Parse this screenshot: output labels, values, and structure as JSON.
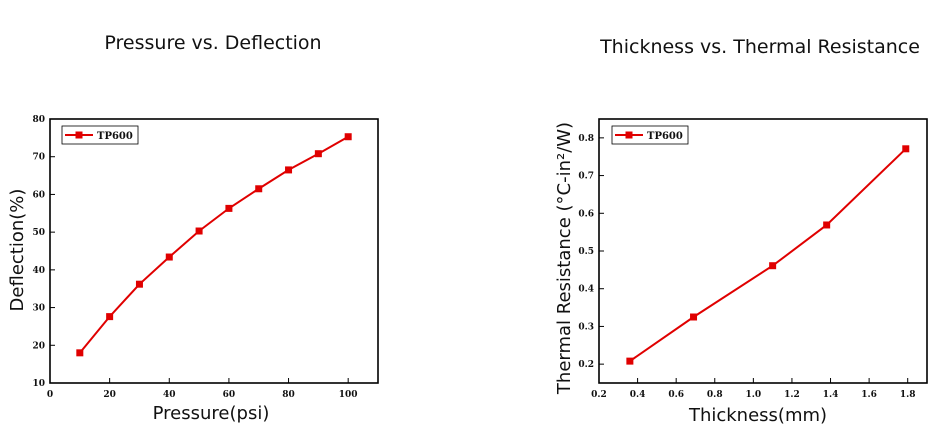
{
  "chart_data": [
    {
      "type": "line",
      "title": "Pressure vs. Deflection",
      "xlabel": "Pressure(psi)",
      "ylabel": "Deflection(%)",
      "xlim": [
        0,
        110
      ],
      "ylim": [
        10,
        80
      ],
      "xticks": [
        "0",
        "20",
        "40",
        "60",
        "80",
        "100"
      ],
      "yticks": [
        "10",
        "20",
        "30",
        "40",
        "50",
        "60",
        "70",
        "80"
      ],
      "legend_position": "top-left",
      "series": [
        {
          "name": "TP600",
          "color": "#e00000",
          "marker": "square",
          "x": [
            10,
            20,
            30,
            40,
            50,
            60,
            70,
            80,
            90,
            100
          ],
          "y": [
            18,
            27.6,
            36.2,
            43.4,
            50.3,
            56.3,
            61.5,
            66.5,
            70.8,
            75.3
          ]
        }
      ]
    },
    {
      "type": "line",
      "title": "Thickness vs. Thermal Resistance",
      "xlabel": "Thickness(mm)",
      "ylabel": "Thermal Resistance (°C-in²/W)",
      "xlim": [
        0.2,
        1.9
      ],
      "ylim": [
        0.15,
        0.85
      ],
      "xticks": [
        "0.2",
        "0.4",
        "0.6",
        "0.8",
        "1.0",
        "1.2",
        "1.4",
        "1.6",
        "1.8"
      ],
      "yticks": [
        "0.2",
        "0.3",
        "0.4",
        "0.5",
        "0.6",
        "0.7",
        "0.8"
      ],
      "legend_position": "top-left",
      "series": [
        {
          "name": "TP600",
          "color": "#e00000",
          "marker": "square",
          "x": [
            0.36,
            0.69,
            1.1,
            1.38,
            1.79
          ],
          "y": [
            0.208,
            0.325,
            0.461,
            0.569,
            0.771
          ]
        }
      ]
    }
  ]
}
